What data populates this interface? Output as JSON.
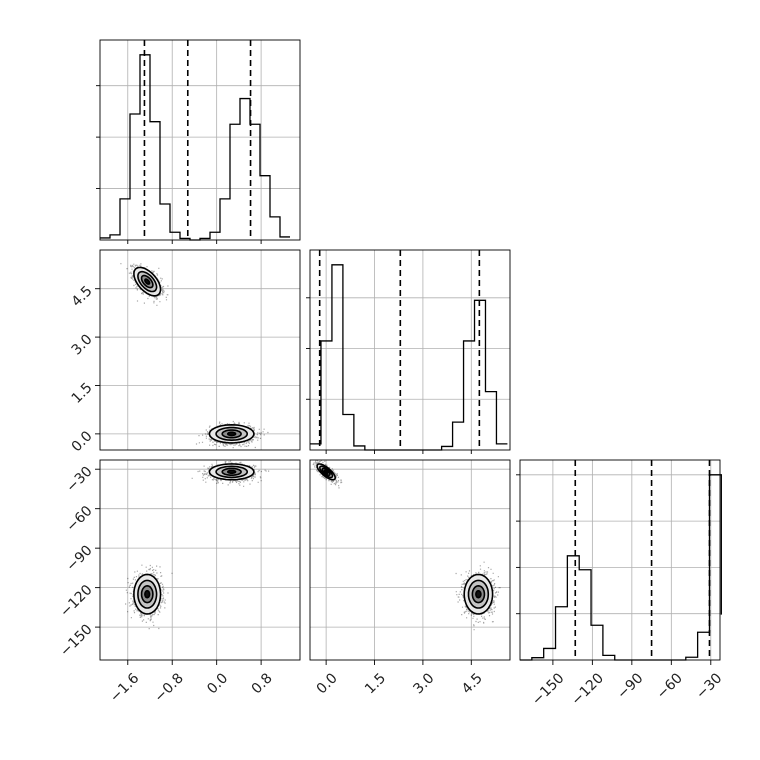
{
  "chart_data": {
    "type": "corner",
    "grid": true,
    "parameters": [
      {
        "range": [
          -2.1,
          1.5
        ],
        "ticks": [
          -1.6,
          -0.8,
          0.0,
          0.8
        ],
        "tick_labels": [
          "−1.6",
          "−0.8",
          "0.0",
          "0.8"
        ],
        "quantile_lines": [
          -1.3,
          -0.52,
          0.61
        ],
        "histogram": {
          "bin_edges": [
            -2.1,
            -1.92,
            -1.74,
            -1.56,
            -1.38,
            -1.2,
            -1.02,
            -0.84,
            -0.66,
            -0.48,
            -0.3,
            -0.12,
            0.06,
            0.24,
            0.42,
            0.6,
            0.78,
            0.96,
            1.14,
            1.32
          ],
          "counts": [
            4,
            10,
            80,
            245,
            360,
            230,
            70,
            15,
            3,
            0,
            3,
            15,
            80,
            225,
            275,
            225,
            125,
            45,
            6
          ]
        }
      },
      {
        "range": [
          -0.5,
          5.7
        ],
        "ticks": [
          0.0,
          1.5,
          3.0,
          4.5
        ],
        "tick_labels": [
          "0.0",
          "1.5",
          "3.0",
          "4.5"
        ],
        "quantile_lines": [
          -0.2,
          2.3,
          4.75
        ],
        "histogram": {
          "bin_edges": [
            -0.5,
            -0.16,
            0.18,
            0.52,
            0.86,
            1.2,
            1.54,
            1.88,
            2.22,
            2.56,
            2.9,
            3.24,
            3.58,
            3.92,
            4.26,
            4.6,
            4.94,
            5.28,
            5.62
          ],
          "counts": [
            12,
            215,
            365,
            70,
            8,
            0,
            0,
            0,
            0,
            0,
            0,
            0,
            7,
            55,
            215,
            295,
            115,
            12
          ]
        }
      },
      {
        "range": [
          -175,
          -23
        ],
        "ticks": [
          -150,
          -120,
          -90,
          -60,
          -30
        ],
        "tick_labels": [
          "−150",
          "−120",
          "−90",
          "−60",
          "−30"
        ],
        "quantile_lines": [
          -133,
          -75,
          -31
        ],
        "histogram": {
          "bin_edges": [
            -175,
            -166,
            -157,
            -148,
            -139,
            -130,
            -121,
            -112,
            -103,
            -94,
            -85,
            -76,
            -67,
            -58,
            -49,
            -40,
            -31,
            -22
          ],
          "counts": [
            0,
            5,
            25,
            115,
            225,
            195,
            75,
            10,
            0,
            0,
            0,
            0,
            0,
            0,
            6,
            60,
            400,
            98
          ]
        }
      }
    ],
    "clusters": [
      {
        "mean": [
          -1.25,
          4.72,
          -125
        ],
        "sd": [
          0.12,
          0.22,
          7.5
        ]
      },
      {
        "mean": [
          0.27,
          0.0,
          -32
        ],
        "sd": [
          0.2,
          0.14,
          3.0
        ]
      }
    ],
    "correlations": {
      "p0_p1": [
        -0.55,
        0.0
      ],
      "p0_p2": [
        0.0,
        0.0
      ],
      "p1_p2": [
        0.0,
        -0.75
      ]
    }
  }
}
